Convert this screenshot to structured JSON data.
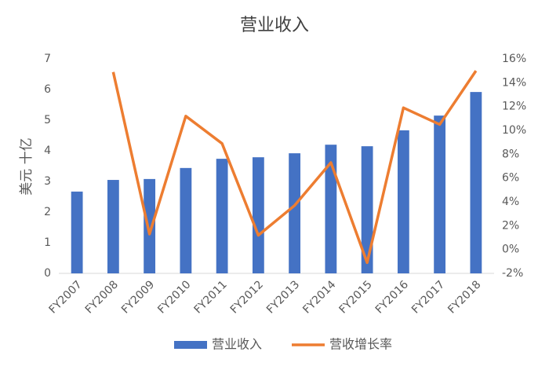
{
  "chart_data": {
    "type": "bar_line",
    "title": "营业收入",
    "ylabel": "美元 十亿",
    "categories": [
      "FY2007",
      "FY2008",
      "FY2009",
      "FY2010",
      "FY2011",
      "FY2012",
      "FY2013",
      "FY2014",
      "FY2015",
      "FY2016",
      "FY2017",
      "FY2018"
    ],
    "series": [
      {
        "name": "营业收入",
        "color": "#4472c4",
        "type": "bar",
        "values": [
          2.67,
          3.05,
          3.08,
          3.44,
          3.74,
          3.79,
          3.92,
          4.2,
          4.15,
          4.67,
          5.15,
          5.92
        ]
      },
      {
        "name": "营收增长率",
        "color": "#ed7d31",
        "type": "line",
        "axis": "y2",
        "values": [
          null,
          14.9,
          1.3,
          11.2,
          8.9,
          1.2,
          3.7,
          7.3,
          -1.1,
          11.9,
          10.5,
          15.0
        ]
      }
    ],
    "ylim": [
      0,
      7
    ],
    "yticks": [
      0,
      1,
      2,
      3,
      4,
      5,
      6,
      7
    ],
    "y2lim": [
      -2,
      16
    ],
    "y2ticks": [
      {
        "value": -2,
        "label": "-2%"
      },
      {
        "value": 0,
        "label": "0%"
      },
      {
        "value": 2,
        "label": "2%"
      },
      {
        "value": 4,
        "label": "4%"
      },
      {
        "value": 6,
        "label": "6%"
      },
      {
        "value": 8,
        "label": "8%"
      },
      {
        "value": 10,
        "label": "10%"
      },
      {
        "value": 12,
        "label": "12%"
      },
      {
        "value": 14,
        "label": "14%"
      },
      {
        "value": 16,
        "label": "16%"
      }
    ],
    "grid": false,
    "legend": "bottom"
  }
}
